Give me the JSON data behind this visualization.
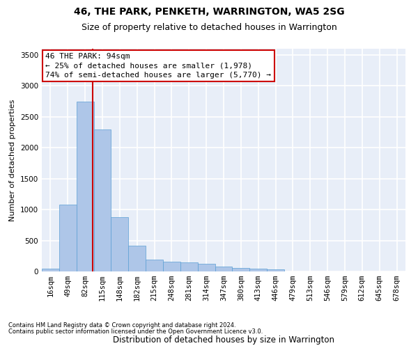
{
  "title": "46, THE PARK, PENKETH, WARRINGTON, WA5 2SG",
  "subtitle": "Size of property relative to detached houses in Warrington",
  "xlabel": "Distribution of detached houses by size in Warrington",
  "ylabel": "Number of detached properties",
  "categories": [
    "16sqm",
    "49sqm",
    "82sqm",
    "115sqm",
    "148sqm",
    "182sqm",
    "215sqm",
    "248sqm",
    "281sqm",
    "314sqm",
    "347sqm",
    "380sqm",
    "413sqm",
    "446sqm",
    "479sqm",
    "513sqm",
    "546sqm",
    "579sqm",
    "612sqm",
    "645sqm",
    "678sqm"
  ],
  "values": [
    50,
    1075,
    2750,
    2300,
    880,
    420,
    195,
    160,
    145,
    120,
    75,
    55,
    50,
    30,
    0,
    0,
    0,
    0,
    0,
    0,
    0
  ],
  "bar_color": "#aec6e8",
  "bar_edge_color": "#5a9fd4",
  "background_color": "#e8eef8",
  "grid_color": "#ffffff",
  "annotation_line1": "46 THE PARK: 94sqm",
  "annotation_line2": "← 25% of detached houses are smaller (1,978)",
  "annotation_line3": "74% of semi-detached houses are larger (5,770) →",
  "vline_x": 2.42,
  "vline_color": "#cc0000",
  "ylim_max": 3600,
  "yticks": [
    0,
    500,
    1000,
    1500,
    2000,
    2500,
    3000,
    3500
  ],
  "footnote1": "Contains HM Land Registry data © Crown copyright and database right 2024.",
  "footnote2": "Contains public sector information licensed under the Open Government Licence v3.0.",
  "title_fontsize": 10,
  "subtitle_fontsize": 9,
  "xlabel_fontsize": 8.5,
  "ylabel_fontsize": 8,
  "tick_fontsize": 7.5,
  "annot_fontsize": 8,
  "footnote_fontsize": 6
}
